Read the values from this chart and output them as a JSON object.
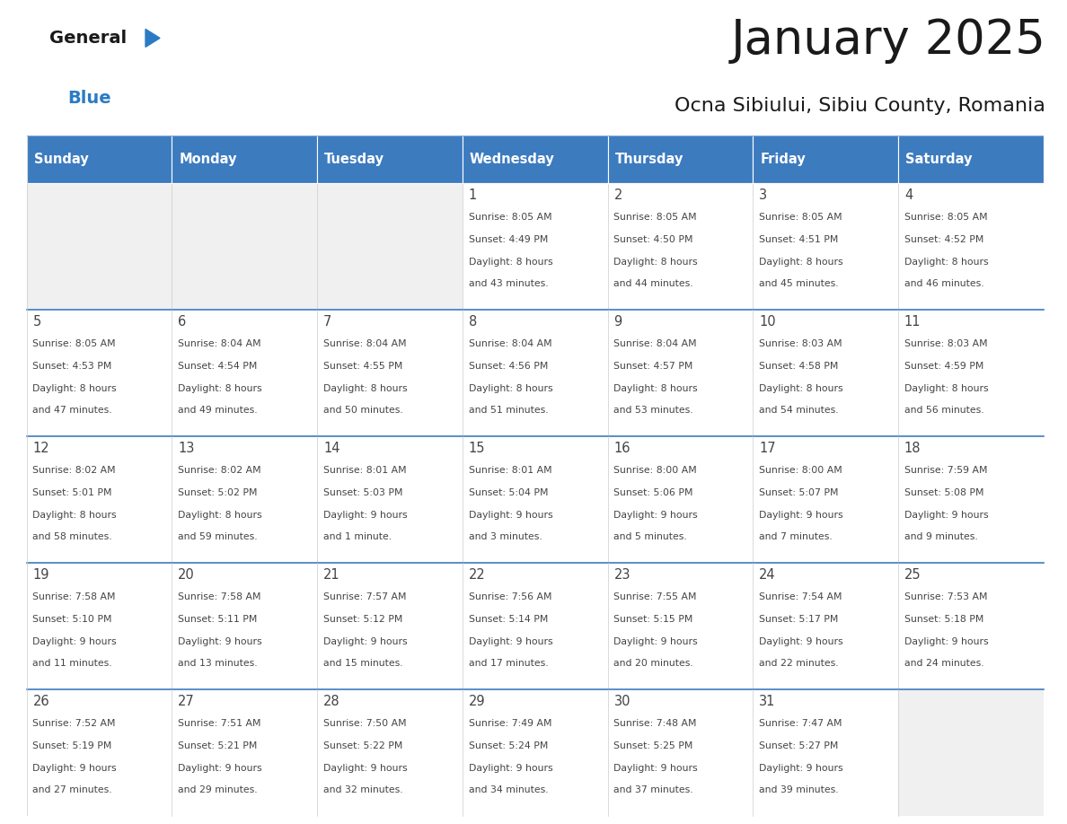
{
  "title": "January 2025",
  "subtitle": "Ocna Sibiului, Sibiu County, Romania",
  "days_of_week": [
    "Sunday",
    "Monday",
    "Tuesday",
    "Wednesday",
    "Thursday",
    "Friday",
    "Saturday"
  ],
  "header_bg": "#3d7bbf",
  "header_text": "#ffffff",
  "cell_bg_light": "#f0f0f0",
  "cell_bg_white": "#ffffff",
  "divider_color": "#3d7bbf",
  "text_color": "#444444",
  "title_color": "#1a1a1a",
  "logo_general_color": "#1a1a1a",
  "logo_blue_color": "#2b7bc4",
  "logo_triangle_color": "#2b7bc4",
  "weeks": [
    [
      {
        "day": "",
        "sunrise": "",
        "sunset": "",
        "daylight": ""
      },
      {
        "day": "",
        "sunrise": "",
        "sunset": "",
        "daylight": ""
      },
      {
        "day": "",
        "sunrise": "",
        "sunset": "",
        "daylight": ""
      },
      {
        "day": "1",
        "sunrise": "8:05 AM",
        "sunset": "4:49 PM",
        "daylight": "8 hours\nand 43 minutes."
      },
      {
        "day": "2",
        "sunrise": "8:05 AM",
        "sunset": "4:50 PM",
        "daylight": "8 hours\nand 44 minutes."
      },
      {
        "day": "3",
        "sunrise": "8:05 AM",
        "sunset": "4:51 PM",
        "daylight": "8 hours\nand 45 minutes."
      },
      {
        "day": "4",
        "sunrise": "8:05 AM",
        "sunset": "4:52 PM",
        "daylight": "8 hours\nand 46 minutes."
      }
    ],
    [
      {
        "day": "5",
        "sunrise": "8:05 AM",
        "sunset": "4:53 PM",
        "daylight": "8 hours\nand 47 minutes."
      },
      {
        "day": "6",
        "sunrise": "8:04 AM",
        "sunset": "4:54 PM",
        "daylight": "8 hours\nand 49 minutes."
      },
      {
        "day": "7",
        "sunrise": "8:04 AM",
        "sunset": "4:55 PM",
        "daylight": "8 hours\nand 50 minutes."
      },
      {
        "day": "8",
        "sunrise": "8:04 AM",
        "sunset": "4:56 PM",
        "daylight": "8 hours\nand 51 minutes."
      },
      {
        "day": "9",
        "sunrise": "8:04 AM",
        "sunset": "4:57 PM",
        "daylight": "8 hours\nand 53 minutes."
      },
      {
        "day": "10",
        "sunrise": "8:03 AM",
        "sunset": "4:58 PM",
        "daylight": "8 hours\nand 54 minutes."
      },
      {
        "day": "11",
        "sunrise": "8:03 AM",
        "sunset": "4:59 PM",
        "daylight": "8 hours\nand 56 minutes."
      }
    ],
    [
      {
        "day": "12",
        "sunrise": "8:02 AM",
        "sunset": "5:01 PM",
        "daylight": "8 hours\nand 58 minutes."
      },
      {
        "day": "13",
        "sunrise": "8:02 AM",
        "sunset": "5:02 PM",
        "daylight": "8 hours\nand 59 minutes."
      },
      {
        "day": "14",
        "sunrise": "8:01 AM",
        "sunset": "5:03 PM",
        "daylight": "9 hours\nand 1 minute."
      },
      {
        "day": "15",
        "sunrise": "8:01 AM",
        "sunset": "5:04 PM",
        "daylight": "9 hours\nand 3 minutes."
      },
      {
        "day": "16",
        "sunrise": "8:00 AM",
        "sunset": "5:06 PM",
        "daylight": "9 hours\nand 5 minutes."
      },
      {
        "day": "17",
        "sunrise": "8:00 AM",
        "sunset": "5:07 PM",
        "daylight": "9 hours\nand 7 minutes."
      },
      {
        "day": "18",
        "sunrise": "7:59 AM",
        "sunset": "5:08 PM",
        "daylight": "9 hours\nand 9 minutes."
      }
    ],
    [
      {
        "day": "19",
        "sunrise": "7:58 AM",
        "sunset": "5:10 PM",
        "daylight": "9 hours\nand 11 minutes."
      },
      {
        "day": "20",
        "sunrise": "7:58 AM",
        "sunset": "5:11 PM",
        "daylight": "9 hours\nand 13 minutes."
      },
      {
        "day": "21",
        "sunrise": "7:57 AM",
        "sunset": "5:12 PM",
        "daylight": "9 hours\nand 15 minutes."
      },
      {
        "day": "22",
        "sunrise": "7:56 AM",
        "sunset": "5:14 PM",
        "daylight": "9 hours\nand 17 minutes."
      },
      {
        "day": "23",
        "sunrise": "7:55 AM",
        "sunset": "5:15 PM",
        "daylight": "9 hours\nand 20 minutes."
      },
      {
        "day": "24",
        "sunrise": "7:54 AM",
        "sunset": "5:17 PM",
        "daylight": "9 hours\nand 22 minutes."
      },
      {
        "day": "25",
        "sunrise": "7:53 AM",
        "sunset": "5:18 PM",
        "daylight": "9 hours\nand 24 minutes."
      }
    ],
    [
      {
        "day": "26",
        "sunrise": "7:52 AM",
        "sunset": "5:19 PM",
        "daylight": "9 hours\nand 27 minutes."
      },
      {
        "day": "27",
        "sunrise": "7:51 AM",
        "sunset": "5:21 PM",
        "daylight": "9 hours\nand 29 minutes."
      },
      {
        "day": "28",
        "sunrise": "7:50 AM",
        "sunset": "5:22 PM",
        "daylight": "9 hours\nand 32 minutes."
      },
      {
        "day": "29",
        "sunrise": "7:49 AM",
        "sunset": "5:24 PM",
        "daylight": "9 hours\nand 34 minutes."
      },
      {
        "day": "30",
        "sunrise": "7:48 AM",
        "sunset": "5:25 PM",
        "daylight": "9 hours\nand 37 minutes."
      },
      {
        "day": "31",
        "sunrise": "7:47 AM",
        "sunset": "5:27 PM",
        "daylight": "9 hours\nand 39 minutes."
      },
      {
        "day": "",
        "sunrise": "",
        "sunset": "",
        "daylight": ""
      }
    ]
  ]
}
